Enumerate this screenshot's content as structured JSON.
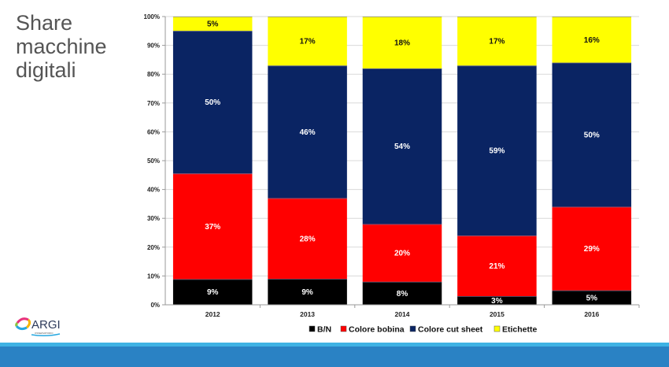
{
  "slide": {
    "title_lines": [
      "Share",
      "macchine",
      "digitali"
    ]
  },
  "logo": {
    "text": "ARGI",
    "subtext": "OSSERVATORIO"
  },
  "colors": {
    "bn": "#000000",
    "bobina": "#ff0000",
    "cutsheet": "#0a2463",
    "etichette": "#ffff00",
    "footer": "#2a82c4",
    "footer_stripe": "#3fb2e4"
  },
  "chart_data": {
    "type": "bar",
    "stacked": true,
    "percent": true,
    "title": "",
    "xlabel": "",
    "ylabel": "",
    "ylim": [
      0,
      100
    ],
    "yticks": [
      "0%",
      "10%",
      "20%",
      "30%",
      "40%",
      "50%",
      "60%",
      "70%",
      "80%",
      "90%",
      "100%"
    ],
    "grid": true,
    "legend_position": "bottom",
    "categories": [
      "2012",
      "2013",
      "2014",
      "2015",
      "2016"
    ],
    "series": [
      {
        "name": "B/N",
        "color": "#000000",
        "label_color": "#ffffff",
        "values": [
          9,
          9,
          8,
          3,
          5
        ]
      },
      {
        "name": "Colore bobina",
        "color": "#ff0000",
        "label_color": "#ffffff",
        "values": [
          37,
          28,
          20,
          21,
          29
        ]
      },
      {
        "name": "Colore cut sheet",
        "color": "#0a2463",
        "label_color": "#ffffff",
        "values": [
          50,
          46,
          54,
          59,
          50
        ]
      },
      {
        "name": "Etichette",
        "color": "#ffff00",
        "label_color": "#111111",
        "values": [
          5,
          17,
          18,
          17,
          16
        ]
      }
    ]
  }
}
